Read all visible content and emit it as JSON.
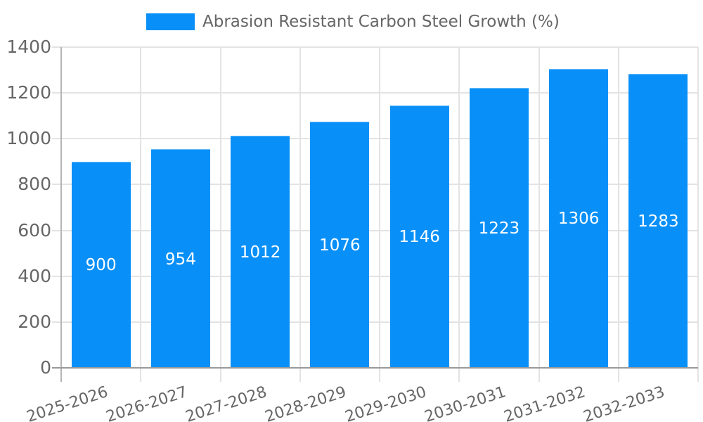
{
  "legend": {
    "swatch_color": "#0990f8"
  },
  "chart_data": {
    "type": "bar",
    "title": "Abrasion Resistant Carbon Steel Growth (%)",
    "xlabel": "",
    "ylabel": "",
    "categories": [
      "2025-2026",
      "2026-2027",
      "2027-2028",
      "2028-2029",
      "2029-2030",
      "2030-2031",
      "2031-2032",
      "2032-2033"
    ],
    "values": [
      900,
      954,
      1012,
      1076,
      1146,
      1223,
      1306,
      1283
    ],
    "ylim": [
      0,
      1400
    ],
    "yticks": [
      0,
      200,
      400,
      600,
      800,
      1000,
      1200,
      1400
    ],
    "grid": true,
    "legend_position": "top-center",
    "bar_color": "#0990f8",
    "bar_edge_color": "#66b8f7",
    "value_label_color": "#ffffff",
    "axis_text_color": "#666666",
    "grid_color": "#e3e3e3",
    "axis_line_color": "#b5b5b5",
    "baseline_color": "#9a9a9a"
  }
}
